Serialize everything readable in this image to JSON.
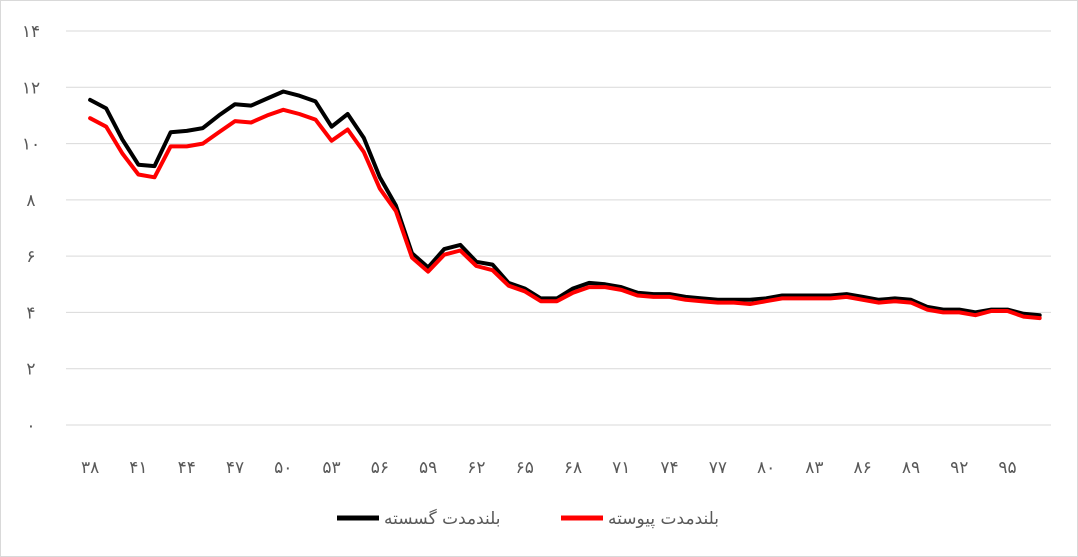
{
  "chart_data": {
    "type": "line",
    "title": "",
    "xlabel": "",
    "ylabel": "",
    "ylim": [
      0,
      14
    ],
    "y_ticks": [
      "۰",
      "۲",
      "۴",
      "۶",
      "۸",
      "۱۰",
      "۱۲",
      "۱۴"
    ],
    "grid": true,
    "legend_position": "bottom",
    "x_tick_labels": [
      "۳۸",
      "۴۱",
      "۴۴",
      "۴۷",
      "۵۰",
      "۵۳",
      "۵۶",
      "۵۹",
      "۶۲",
      "۶۵",
      "۶۸",
      "۷۱",
      "۷۴",
      "۷۷",
      "۸۰",
      "۸۳",
      "۸۶",
      "۸۹",
      "۹۲",
      "۹۵"
    ],
    "x": [
      38,
      39,
      40,
      41,
      42,
      43,
      44,
      45,
      46,
      47,
      48,
      49,
      50,
      51,
      52,
      53,
      54,
      55,
      56,
      57,
      58,
      59,
      60,
      61,
      62,
      63,
      64,
      65,
      66,
      67,
      68,
      69,
      70,
      71,
      72,
      73,
      74,
      75,
      76,
      77,
      78,
      79,
      80,
      81,
      82,
      83,
      84,
      85,
      86,
      87,
      88,
      89,
      90,
      91,
      92,
      93,
      94,
      95,
      96,
      97
    ],
    "series": [
      {
        "name": "بلندمدت گسسته",
        "color": "#000000",
        "values": [
          11.55,
          11.25,
          10.15,
          9.25,
          9.2,
          10.4,
          10.45,
          10.55,
          11.0,
          11.4,
          11.35,
          11.6,
          11.85,
          11.7,
          11.5,
          10.6,
          11.05,
          10.2,
          8.8,
          7.8,
          6.1,
          5.6,
          6.25,
          6.4,
          5.8,
          5.7,
          5.05,
          4.85,
          4.5,
          4.5,
          4.85,
          5.05,
          5.0,
          4.9,
          4.7,
          4.65,
          4.65,
          4.55,
          4.5,
          4.45,
          4.45,
          4.45,
          4.5,
          4.6,
          4.6,
          4.6,
          4.6,
          4.65,
          4.55,
          4.45,
          4.5,
          4.45,
          4.2,
          4.1,
          4.1,
          4.0,
          4.1,
          4.1,
          3.95,
          3.9
        ]
      },
      {
        "name": "بلندمدت پیوسته",
        "color": "#ff0000",
        "values": [
          10.9,
          10.6,
          9.65,
          8.9,
          8.8,
          9.9,
          9.9,
          10.0,
          10.4,
          10.8,
          10.75,
          11.0,
          11.2,
          11.05,
          10.85,
          10.1,
          10.5,
          9.7,
          8.4,
          7.6,
          5.95,
          5.45,
          6.05,
          6.2,
          5.65,
          5.5,
          4.95,
          4.75,
          4.4,
          4.4,
          4.7,
          4.9,
          4.9,
          4.8,
          4.6,
          4.55,
          4.55,
          4.45,
          4.4,
          4.35,
          4.35,
          4.3,
          4.4,
          4.5,
          4.5,
          4.5,
          4.5,
          4.55,
          4.45,
          4.35,
          4.4,
          4.35,
          4.1,
          4.0,
          4.0,
          3.9,
          4.05,
          4.05,
          3.85,
          3.8
        ]
      }
    ]
  }
}
